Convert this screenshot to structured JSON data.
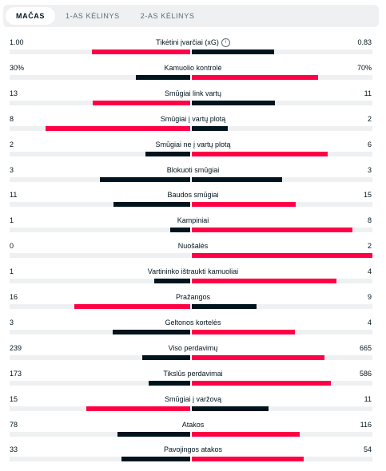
{
  "tabs": [
    {
      "label": "MAČAS",
      "active": true
    },
    {
      "label": "1-AS KĖLINYS",
      "active": false
    },
    {
      "label": "2-AS KĖLINYS",
      "active": false
    }
  ],
  "colors": {
    "winner": "#ff0046",
    "loser": "#00141e",
    "track": "#eef0f1"
  },
  "stats": [
    {
      "label": "Tikėtini įvarčiai (xG)",
      "home": "1.00",
      "away": "0.83",
      "home_share": 0.546,
      "away_share": 0.454,
      "winner": "home",
      "info_icon": "info-icon"
    },
    {
      "label": "Kamuolio kontrolė",
      "home": "30%",
      "away": "70%",
      "home_share": 0.3,
      "away_share": 0.7,
      "winner": "away"
    },
    {
      "label": "Smūgiai link vartų",
      "home": "13",
      "away": "11",
      "home_share": 0.542,
      "away_share": 0.458,
      "winner": "home"
    },
    {
      "label": "Smūgiai į vartų plotą",
      "home": "8",
      "away": "2",
      "home_share": 0.8,
      "away_share": 0.2,
      "winner": "home"
    },
    {
      "label": "Smūgiai ne į vartų plotą",
      "home": "2",
      "away": "6",
      "home_share": 0.25,
      "away_share": 0.75,
      "winner": "away"
    },
    {
      "label": "Blokuoti smūgiai",
      "home": "3",
      "away": "3",
      "home_share": 0.5,
      "away_share": 0.5,
      "winner": "none"
    },
    {
      "label": "Baudos smūgiai",
      "home": "11",
      "away": "15",
      "home_share": 0.423,
      "away_share": 0.577,
      "winner": "away"
    },
    {
      "label": "Kampiniai",
      "home": "1",
      "away": "8",
      "home_share": 0.111,
      "away_share": 0.889,
      "winner": "away"
    },
    {
      "label": "Nuošalės",
      "home": "0",
      "away": "2",
      "home_share": 0.0,
      "away_share": 1.0,
      "winner": "away"
    },
    {
      "label": "Vartininko ištraukti kamuoliai",
      "home": "1",
      "away": "4",
      "home_share": 0.2,
      "away_share": 0.8,
      "winner": "away"
    },
    {
      "label": "Pražangos",
      "home": "16",
      "away": "9",
      "home_share": 0.64,
      "away_share": 0.36,
      "winner": "home"
    },
    {
      "label": "Geltonos kortelės",
      "home": "3",
      "away": "4",
      "home_share": 0.429,
      "away_share": 0.571,
      "winner": "away"
    },
    {
      "label": "Viso perdavimų",
      "home": "239",
      "away": "665",
      "home_share": 0.264,
      "away_share": 0.736,
      "winner": "away"
    },
    {
      "label": "Tikslūs perdavimai",
      "home": "173",
      "away": "586",
      "home_share": 0.228,
      "away_share": 0.772,
      "winner": "away"
    },
    {
      "label": "Smūgiai į varžovą",
      "home": "15",
      "away": "11",
      "home_share": 0.577,
      "away_share": 0.423,
      "winner": "home"
    },
    {
      "label": "Atakos",
      "home": "78",
      "away": "116",
      "home_share": 0.402,
      "away_share": 0.598,
      "winner": "away"
    },
    {
      "label": "Pavojingos atakos",
      "home": "33",
      "away": "54",
      "home_share": 0.379,
      "away_share": 0.621,
      "winner": "away"
    }
  ]
}
